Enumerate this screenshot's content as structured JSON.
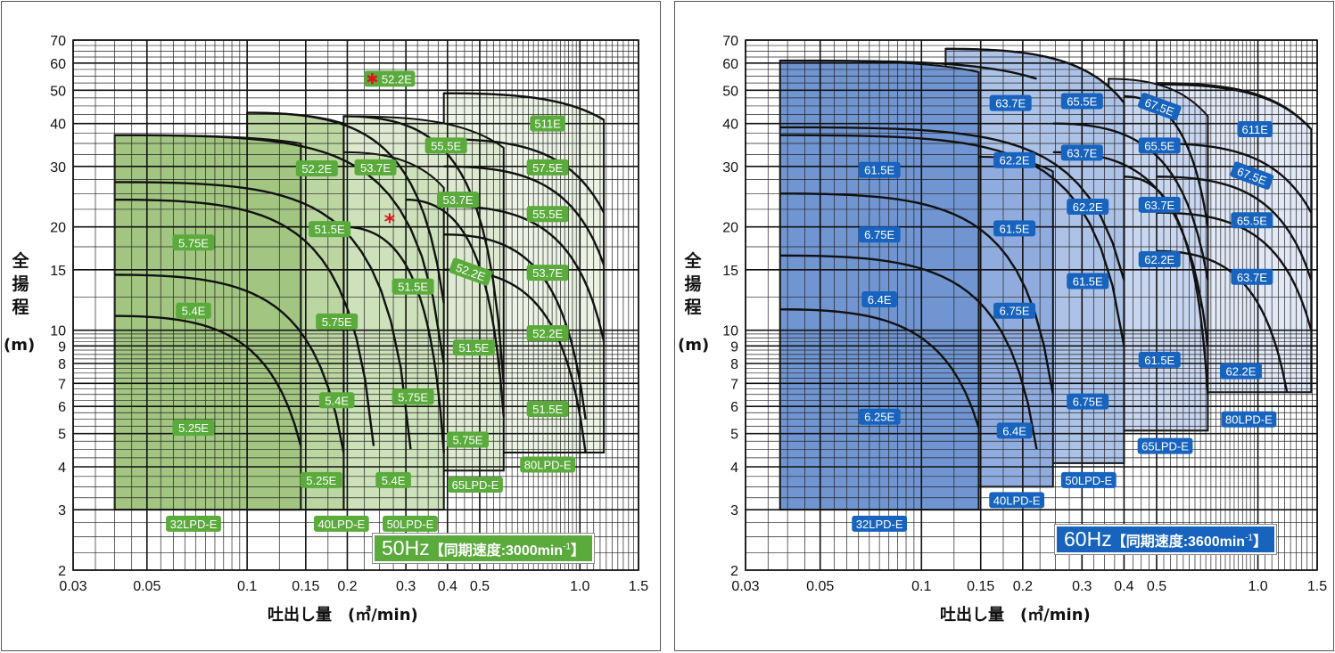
{
  "chart_data": [
    {
      "type": "line",
      "xscale": "log",
      "yscale": "log",
      "xlim": [
        0.03,
        1.5
      ],
      "ylim": [
        2,
        70
      ],
      "grid": true,
      "xlabel": "吐出し量　(㎥/min)",
      "ylabel": "全揚程",
      "yunit": "(m)",
      "banner": {
        "freq": "50Hz",
        "text": "【同期速度:3000min",
        "sup": "-1",
        "close": "】",
        "color": "#5aaa3c"
      },
      "label_color": "#5aaa3c",
      "xticks": [
        {
          "v": 0.03,
          "label": "0.03"
        },
        {
          "v": 0.05,
          "label": "0.05"
        },
        {
          "v": 0.1,
          "label": "0.1"
        },
        {
          "v": 0.15,
          "label": "0.15"
        },
        {
          "v": 0.2,
          "label": "0.2"
        },
        {
          "v": 0.3,
          "label": "0.3"
        },
        {
          "v": 0.4,
          "label": "0.4"
        },
        {
          "v": 0.5,
          "label": "0.5"
        },
        {
          "v": 1.0,
          "label": "1.0"
        },
        {
          "v": 1.5,
          "label": "1.5"
        }
      ],
      "yticks": [
        {
          "v": 2,
          "label": "2"
        },
        {
          "v": 3,
          "label": "3"
        },
        {
          "v": 4,
          "label": "4"
        },
        {
          "v": 5,
          "label": "5"
        },
        {
          "v": 6,
          "label": "6"
        },
        {
          "v": 7,
          "label": "7"
        },
        {
          "v": 8,
          "label": "8"
        },
        {
          "v": 9,
          "label": "9"
        },
        {
          "v": 10,
          "label": "10"
        },
        {
          "v": 15,
          "label": "15"
        },
        {
          "v": 20,
          "label": "20"
        },
        {
          "v": 30,
          "label": "30"
        },
        {
          "v": 40,
          "label": "40"
        },
        {
          "v": 50,
          "label": "50"
        },
        {
          "v": 60,
          "label": "60"
        },
        {
          "v": 70,
          "label": "70"
        }
      ],
      "regions": [
        {
          "model": "80LPD-E",
          "q": [
            0.39,
            1.18
          ],
          "h_bottom": 4.4,
          "h_top": [
            49,
            41
          ],
          "fill": "#ecf3e5",
          "label": {
            "q": 0.8,
            "h": 4.06
          }
        },
        {
          "model": "65LPD-E",
          "q": [
            0.195,
            0.59
          ],
          "h_bottom": 3.9,
          "h_top": [
            42,
            34
          ],
          "fill": "#dde9d0",
          "label": {
            "q": 0.485,
            "h": 3.55
          }
        },
        {
          "model": "50LPD-E",
          "q": [
            0.195,
            0.39
          ],
          "h_bottom": 3,
          "h_top": [
            33,
            26
          ],
          "fill": "#cde1ba",
          "label": {
            "q": 0.309,
            "h": 2.73
          }
        },
        {
          "model": "40LPD-E",
          "q": [
            0.1,
            0.195
          ],
          "h_bottom": 3,
          "h_top": [
            43,
            40
          ],
          "fill": "#bcd6a2",
          "label": {
            "q": 0.192,
            "h": 2.73
          }
        },
        {
          "model": "32LPD-E",
          "q": [
            0.04,
            0.145
          ],
          "h_bottom": 3,
          "h_top": [
            37,
            35
          ],
          "fill": "#a2c582",
          "label": {
            "q": 0.069,
            "h": 2.73
          }
        }
      ],
      "curves": [
        {
          "q": [
            0.04,
            0.145
          ],
          "h": [
            11,
            4.6
          ]
        },
        {
          "q": [
            0.04,
            0.195
          ],
          "h": [
            14.5,
            4.4
          ]
        },
        {
          "q": [
            0.04,
            0.24
          ],
          "h": [
            24,
            4.6
          ]
        },
        {
          "q": [
            0.04,
            0.31
          ],
          "h": [
            27,
            4.5
          ]
        },
        {
          "q": [
            0.04,
            0.39
          ],
          "h": [
            37,
            8
          ]
        },
        {
          "q": [
            0.1,
            0.39
          ],
          "h": [
            43,
            12
          ]
        },
        {
          "q": [
            0.195,
            0.59
          ],
          "h": [
            42,
            7
          ]
        },
        {
          "q": [
            0.195,
            0.39
          ],
          "h": [
            20,
            4.4
          ]
        },
        {
          "q": [
            0.3,
            0.59
          ],
          "h": [
            24,
            5.6
          ]
        },
        {
          "q": [
            0.39,
            1.18
          ],
          "h": [
            49,
            41
          ]
        },
        {
          "q": [
            0.39,
            1.18
          ],
          "h": [
            36,
            22
          ]
        },
        {
          "q": [
            0.39,
            1.18
          ],
          "h": [
            30,
            15.5
          ]
        },
        {
          "q": [
            0.39,
            1.18
          ],
          "h": [
            23,
            9.3
          ]
        },
        {
          "q": [
            0.39,
            1.04
          ],
          "h": [
            19,
            5.5
          ]
        },
        {
          "q": [
            0.39,
            1.04
          ],
          "h": [
            15,
            4.4
          ]
        }
      ],
      "labels": [
        {
          "text": "52.2E",
          "q": 0.268,
          "h": 54,
          "mark": "✱"
        },
        {
          "text": "511E",
          "q": 0.8,
          "h": 40
        },
        {
          "text": "52.2E",
          "q": 0.162,
          "h": 29.6
        },
        {
          "text": "53.7E",
          "q": 0.243,
          "h": 29.8
        },
        {
          "text": "55.5E",
          "q": 0.396,
          "h": 34.5
        },
        {
          "text": "57.5E",
          "q": 0.8,
          "h": 29.8
        },
        {
          "text": "53.7E",
          "q": 0.43,
          "h": 24
        },
        {
          "text": "55.5E",
          "q": 0.8,
          "h": 21.8
        },
        {
          "text": "51.5E",
          "q": 0.177,
          "h": 19.7
        },
        {
          "text": "*",
          "q": 0.268,
          "h": 20.8,
          "asterisk": true
        },
        {
          "text": "5.75E",
          "q": 0.069,
          "h": 18
        },
        {
          "text": "52.2E",
          "q": 0.47,
          "h": 14.8,
          "rotated": true
        },
        {
          "text": "53.7E",
          "q": 0.8,
          "h": 14.7
        },
        {
          "text": "51.5E",
          "q": 0.315,
          "h": 13.4
        },
        {
          "text": "5.4E",
          "q": 0.069,
          "h": 11.4
        },
        {
          "text": "5.75E",
          "q": 0.186,
          "h": 10.6
        },
        {
          "text": "52.2E",
          "q": 0.8,
          "h": 9.8
        },
        {
          "text": "51.5E",
          "q": 0.48,
          "h": 8.9
        },
        {
          "text": "5.75E",
          "q": 0.315,
          "h": 6.4
        },
        {
          "text": "5.4E",
          "q": 0.186,
          "h": 6.25
        },
        {
          "text": "51.5E",
          "q": 0.8,
          "h": 5.9
        },
        {
          "text": "5.25E",
          "q": 0.069,
          "h": 5.2
        },
        {
          "text": "5.75E",
          "q": 0.46,
          "h": 4.8
        },
        {
          "text": "5.25E",
          "q": 0.167,
          "h": 3.66
        },
        {
          "text": "5.4E",
          "q": 0.275,
          "h": 3.66
        }
      ]
    },
    {
      "type": "line",
      "xscale": "log",
      "yscale": "log",
      "xlim": [
        0.03,
        1.5
      ],
      "ylim": [
        2,
        70
      ],
      "grid": true,
      "xlabel": "吐出し量　(㎥/min)",
      "ylabel": "全揚程",
      "yunit": "(m)",
      "banner": {
        "freq": "60Hz",
        "text": "【同期速度:3600min",
        "sup": "-1",
        "close": "】",
        "color": "#1763bd"
      },
      "label_color": "#1763bd",
      "xticks": [
        {
          "v": 0.03,
          "label": "0.03"
        },
        {
          "v": 0.05,
          "label": "0.05"
        },
        {
          "v": 0.1,
          "label": "0.1"
        },
        {
          "v": 0.15,
          "label": "0.15"
        },
        {
          "v": 0.2,
          "label": "0.2"
        },
        {
          "v": 0.3,
          "label": "0.3"
        },
        {
          "v": 0.4,
          "label": "0.4"
        },
        {
          "v": 0.5,
          "label": "0.5"
        },
        {
          "v": 1.0,
          "label": "1.0"
        },
        {
          "v": 1.5,
          "label": "1.5"
        }
      ],
      "yticks": [
        {
          "v": 2,
          "label": "2"
        },
        {
          "v": 3,
          "label": "3"
        },
        {
          "v": 4,
          "label": "4"
        },
        {
          "v": 5,
          "label": "5"
        },
        {
          "v": 6,
          "label": "6"
        },
        {
          "v": 7,
          "label": "7"
        },
        {
          "v": 8,
          "label": "8"
        },
        {
          "v": 9,
          "label": "9"
        },
        {
          "v": 10,
          "label": "10"
        },
        {
          "v": 15,
          "label": "15"
        },
        {
          "v": 20,
          "label": "20"
        },
        {
          "v": 30,
          "label": "30"
        },
        {
          "v": 40,
          "label": "40"
        },
        {
          "v": 50,
          "label": "50"
        },
        {
          "v": 60,
          "label": "60"
        },
        {
          "v": 70,
          "label": "70"
        }
      ],
      "regions": [
        {
          "model": "80LPD-E",
          "q": [
            0.5,
            1.44
          ],
          "h_bottom": 6.6,
          "h_top": [
            52.5,
            38.5
          ],
          "fill": "#e1e8f6",
          "label": {
            "q": 0.94,
            "h": 5.5
          }
        },
        {
          "model": "65LPD-E",
          "q": [
            0.36,
            0.71
          ],
          "h_bottom": 5.1,
          "h_top": [
            54,
            42
          ],
          "fill": "#c8d6ef",
          "label": {
            "q": 0.53,
            "h": 4.6
          }
        },
        {
          "model": "50LPD-E",
          "q": [
            0.118,
            0.4
          ],
          "h_bottom": 4.1,
          "h_top": [
            66,
            46
          ],
          "fill": "#adc2e7",
          "label": {
            "q": 0.314,
            "h": 3.66
          }
        },
        {
          "model": "40LPD-E",
          "q": [
            0.148,
            0.246
          ],
          "h_bottom": 3.5,
          "h_top": [
            32,
            29
          ],
          "fill": "#90acde",
          "label": {
            "q": 0.192,
            "h": 3.2
          }
        },
        {
          "model": "32LPD-E",
          "q": [
            0.038,
            0.148
          ],
          "h_bottom": 3,
          "h_top": [
            61,
            56.5
          ],
          "fill": "#7095d1",
          "label": {
            "q": 0.075,
            "h": 2.73
          }
        }
      ],
      "curves": [
        {
          "q": [
            0.038,
            0.148
          ],
          "h": [
            11.5,
            5.2
          ]
        },
        {
          "q": [
            0.038,
            0.22
          ],
          "h": [
            16.5,
            4.5
          ]
        },
        {
          "q": [
            0.038,
            0.246
          ],
          "h": [
            25,
            6.5
          ]
        },
        {
          "q": [
            0.038,
            0.4
          ],
          "h": [
            37,
            9
          ]
        },
        {
          "q": [
            0.038,
            0.4
          ],
          "h": [
            39,
            14
          ]
        },
        {
          "q": [
            0.038,
            0.22
          ],
          "h": [
            61,
            54
          ]
        },
        {
          "q": [
            0.118,
            0.4
          ],
          "h": [
            66,
            46
          ]
        },
        {
          "q": [
            0.246,
            0.71
          ],
          "h": [
            40,
            14
          ]
        },
        {
          "q": [
            0.246,
            0.71
          ],
          "h": [
            33,
            9
          ]
        },
        {
          "q": [
            0.4,
            0.71
          ],
          "h": [
            48,
            20
          ]
        },
        {
          "q": [
            0.4,
            0.71
          ],
          "h": [
            28,
            6.5
          ]
        },
        {
          "q": [
            0.5,
            1.44
          ],
          "h": [
            52,
            38.5
          ]
        },
        {
          "q": [
            0.5,
            1.44
          ],
          "h": [
            35,
            22
          ]
        },
        {
          "q": [
            0.5,
            1.44
          ],
          "h": [
            28,
            14
          ]
        },
        {
          "q": [
            0.5,
            1.44
          ],
          "h": [
            22,
            10
          ]
        },
        {
          "q": [
            0.5,
            1.22
          ],
          "h": [
            17,
            6.6
          ]
        }
      ],
      "labels": [
        {
          "text": "63.7E",
          "q": 0.184,
          "h": 45.9
        },
        {
          "text": "65.5E",
          "q": 0.3,
          "h": 46.5
        },
        {
          "text": "67.5E",
          "q": 0.51,
          "h": 44.8,
          "rotated": true
        },
        {
          "text": "611E",
          "q": 0.98,
          "h": 38.5
        },
        {
          "text": "65.5E",
          "q": 0.51,
          "h": 34.5
        },
        {
          "text": "63.7E",
          "q": 0.3,
          "h": 32.9
        },
        {
          "text": "62.2E",
          "q": 0.189,
          "h": 31.3
        },
        {
          "text": "61.5E",
          "q": 0.075,
          "h": 29.3
        },
        {
          "text": "67.5E",
          "q": 0.96,
          "h": 28.2,
          "rotated": true
        },
        {
          "text": "63.7E",
          "q": 0.51,
          "h": 23.2
        },
        {
          "text": "62.2E",
          "q": 0.312,
          "h": 22.9
        },
        {
          "text": "65.5E",
          "q": 0.96,
          "h": 20.9
        },
        {
          "text": "61.5E",
          "q": 0.189,
          "h": 19.8
        },
        {
          "text": "6.75E",
          "q": 0.075,
          "h": 19
        },
        {
          "text": "62.2E",
          "q": 0.51,
          "h": 16.1
        },
        {
          "text": "63.7E",
          "q": 0.96,
          "h": 14.3
        },
        {
          "text": "61.5E",
          "q": 0.312,
          "h": 13.9
        },
        {
          "text": "6.4E",
          "q": 0.075,
          "h": 12.3
        },
        {
          "text": "6.75E",
          "q": 0.189,
          "h": 11.4
        },
        {
          "text": "61.5E",
          "q": 0.51,
          "h": 8.2
        },
        {
          "text": "62.2E",
          "q": 0.89,
          "h": 7.6
        },
        {
          "text": "6.75E",
          "q": 0.312,
          "h": 6.2
        },
        {
          "text": "6.25E",
          "q": 0.075,
          "h": 5.6
        },
        {
          "text": "6.4E",
          "q": 0.189,
          "h": 5.1
        }
      ]
    }
  ]
}
